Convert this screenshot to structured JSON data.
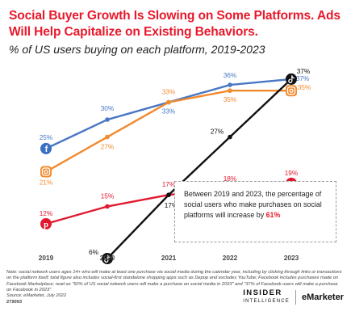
{
  "header": {
    "title": "Social Buyer Growth Is Slowing on Some Platforms. Ads Will Help Capitalize on Existing Behaviors.",
    "subtitle": "% of US users buying on each platform, 2019-2023"
  },
  "chart_data": {
    "type": "line",
    "title": "Social Buyer Growth Is Slowing on Some Platforms. Ads Will Help Capitalize on Existing Behaviors.",
    "subtitle": "% of US users buying on each platform, 2019-2023",
    "xlabel": "",
    "ylabel": "",
    "categories": [
      "2019",
      "2020",
      "2021",
      "2022",
      "2023"
    ],
    "ylim": [
      0,
      40
    ],
    "grid": false,
    "series": [
      {
        "icon": "facebook-icon",
        "color": "#4a77c4",
        "values": [
          25,
          30,
          33,
          36,
          37
        ],
        "labels": [
          "25%",
          "30%",
          "33%",
          "36%",
          "37%"
        ]
      },
      {
        "icon": "instagram-icon",
        "color": "#f28a2e",
        "values": [
          21,
          27,
          33,
          35,
          35
        ],
        "labels": [
          "21%",
          "27%",
          "33%",
          "35%",
          "35%"
        ]
      },
      {
        "icon": "pinterest-icon",
        "color": "#e0192f",
        "values": [
          12,
          15,
          17,
          18,
          19
        ],
        "labels": [
          "12%",
          "15%",
          "17%",
          "18%",
          "19%"
        ]
      },
      {
        "icon": "tiktok-icon",
        "color": "#111111",
        "values": [
          null,
          6,
          17,
          27,
          37
        ],
        "labels": [
          null,
          "6%",
          "17%",
          "27%",
          "37%"
        ]
      }
    ]
  },
  "callout": {
    "text": "Between 2019 and 2023, the percentage of social users who make purchases on social platforms will increase by ",
    "highlight": "61%"
  },
  "footer": {
    "note": "Note: social network users ages 14+ who will make at least one purchase via social media during the calendar year, including by clicking through links or transactions on the platform itself; total figure also includes social-first standalone shopping apps such as Depop and excludes YouTube; Facebook includes purchases made on Facebook Marketplace; read as \"50% of US social network users will make a purchase on social media in 2023\" and \"37% of Facebook users will make a purchase on Facebook in 2023\"",
    "source": "Source: eMarketer, July 2022",
    "code": "279093",
    "brand_insider": "INSIDER",
    "brand_intelligence": "INTELLIGENCE",
    "brand_emarketer": "eMarketer"
  }
}
